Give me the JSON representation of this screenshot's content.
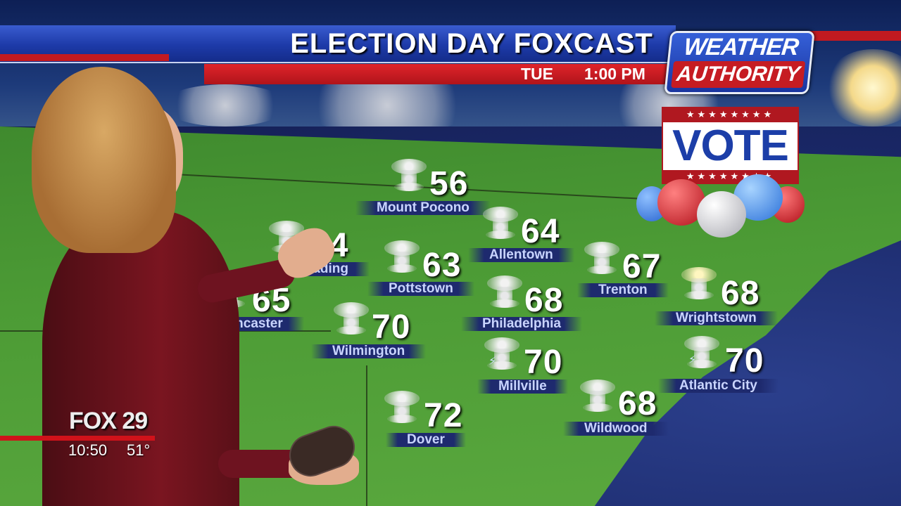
{
  "header": {
    "title": "ELECTION DAY FOXCAST",
    "day": "TUE",
    "time": "1:00 PM"
  },
  "logo": {
    "line1": "WEATHER",
    "line2": "AUTHORITY"
  },
  "vote_sign": {
    "text": "VOTE",
    "stars": "★★★★★★★★"
  },
  "cities": [
    {
      "name": "Mount Pocono",
      "temp": "56",
      "icon": "cloudy-icon"
    },
    {
      "name": "Allentown",
      "temp": "64",
      "icon": "cloudy-icon"
    },
    {
      "name": "Reading",
      "temp": "64",
      "icon": "cloudy-icon"
    },
    {
      "name": "Pottstown",
      "temp": "63",
      "icon": "cloudy-icon"
    },
    {
      "name": "Trenton",
      "temp": "67",
      "icon": "cloudy-icon"
    },
    {
      "name": "Lancaster",
      "temp": "65",
      "icon": "cloudy-icon"
    },
    {
      "name": "Philadelphia",
      "temp": "68",
      "icon": "cloudy-icon"
    },
    {
      "name": "Wrightstown",
      "temp": "68",
      "icon": "partly-cloudy-icon"
    },
    {
      "name": "Wilmington",
      "temp": "70",
      "icon": "cloudy-icon"
    },
    {
      "name": "Millville",
      "temp": "70",
      "icon": "thunderstorm-icon"
    },
    {
      "name": "Atlantic City",
      "temp": "70",
      "icon": "thunderstorm-icon"
    },
    {
      "name": "Wildwood",
      "temp": "68",
      "icon": "cloudy-icon"
    },
    {
      "name": "Dover",
      "temp": "72",
      "icon": "cloudy-icon"
    }
  ],
  "station_bug": {
    "logo": "FOX 29",
    "time": "10:50",
    "temperature": "51°"
  },
  "colors": {
    "banner_blue": "#1d3aa8",
    "banner_red": "#c61c22",
    "land": "#4c9b35",
    "ocean": "#1a2868"
  }
}
